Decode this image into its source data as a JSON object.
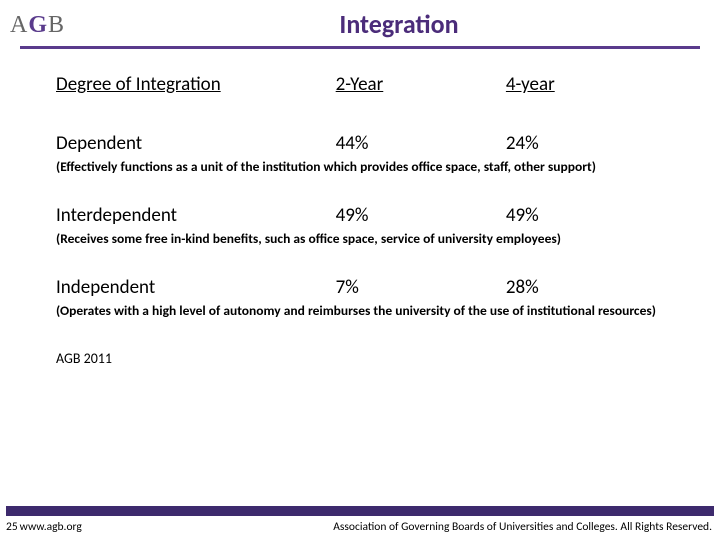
{
  "colors": {
    "accent": "#5a3b8c",
    "title_text": "#4b2c7a",
    "text": "#000000",
    "footer_bar": "#3d2a6d",
    "logo_gray": "#666666"
  },
  "logo": {
    "a": "A",
    "g": "G",
    "b": "B"
  },
  "title": "Integration",
  "table": {
    "headers": {
      "col_a": "Degree of Integration",
      "col_b": "2-Year",
      "col_c": "4-year"
    },
    "rows": [
      {
        "label": "Dependent",
        "col_b": "44%",
        "col_c": "24%",
        "note": "(Effectively functions as a unit of the institution which provides office space, staff, other support)"
      },
      {
        "label": "Interdependent",
        "col_b": "49%",
        "col_c": "49%",
        "note": "(Receives some free in-kind benefits, such as office space, service of university employees)"
      },
      {
        "label": "Independent",
        "col_b": "7%",
        "col_c": "28%",
        "note": "(Operates with a high level of autonomy and reimburses the university of the use of institutional resources)"
      }
    ]
  },
  "source": "AGB 2011",
  "footer": {
    "page_number": "25",
    "url": "www.agb.org",
    "copyright": "Association of Governing Boards of Universities and Colleges. All Rights Reserved."
  }
}
